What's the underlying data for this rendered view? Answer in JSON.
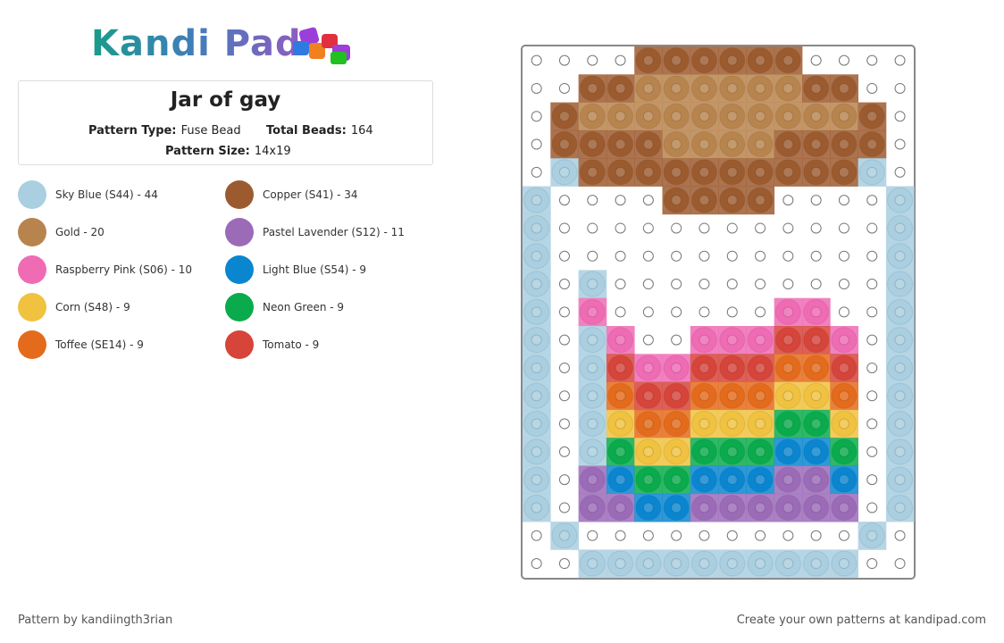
{
  "header": {
    "logo": "Kandi Pad"
  },
  "info": {
    "title": "Jar of gay",
    "pattern_type_label": "Pattern Type:",
    "pattern_type": "Fuse Bead",
    "total_beads_label": "Total Beads:",
    "total_beads": "164",
    "pattern_size_label": "Pattern Size:",
    "pattern_size": "14x19"
  },
  "legend": [
    {
      "label": "Sky Blue (S44) - 44",
      "color": "#a9cfe0"
    },
    {
      "label": "Copper (S41) - 34",
      "color": "#9c5b2f"
    },
    {
      "label": "Gold - 20",
      "color": "#b8844d"
    },
    {
      "label": "Pastel Lavender (S12) - 11",
      "color": "#9b6bb8"
    },
    {
      "label": "Raspberry Pink (S06) - 10",
      "color": "#ef6bb4"
    },
    {
      "label": "Light Blue (S54) - 9",
      "color": "#0a86d0"
    },
    {
      "label": "Corn (S48) - 9",
      "color": "#f0c23f"
    },
    {
      "label": "Neon Green - 9",
      "color": "#0aab4c"
    },
    {
      "label": "Toffee (SE14) - 9",
      "color": "#e46b1b"
    },
    {
      "label": "Tomato - 9",
      "color": "#d6443a"
    }
  ],
  "grid": [
    [
      null,
      null,
      null,
      null,
      1,
      1,
      1,
      1,
      1,
      1,
      null,
      null,
      null,
      null
    ],
    [
      null,
      null,
      1,
      1,
      2,
      2,
      2,
      2,
      2,
      2,
      1,
      1,
      null,
      null
    ],
    [
      null,
      1,
      2,
      2,
      2,
      2,
      2,
      2,
      2,
      2,
      2,
      2,
      1,
      null
    ],
    [
      null,
      1,
      1,
      1,
      1,
      2,
      2,
      2,
      2,
      1,
      1,
      1,
      1,
      null
    ],
    [
      null,
      0,
      1,
      1,
      1,
      1,
      1,
      1,
      1,
      1,
      1,
      1,
      0,
      null
    ],
    [
      0,
      null,
      null,
      null,
      null,
      1,
      1,
      1,
      1,
      null,
      null,
      null,
      null,
      0
    ],
    [
      0,
      null,
      null,
      null,
      null,
      null,
      null,
      null,
      null,
      null,
      null,
      null,
      null,
      0
    ],
    [
      0,
      null,
      null,
      null,
      null,
      null,
      null,
      null,
      null,
      null,
      null,
      null,
      null,
      0
    ],
    [
      0,
      null,
      0,
      null,
      null,
      null,
      null,
      null,
      null,
      null,
      null,
      null,
      null,
      0
    ],
    [
      0,
      null,
      4,
      null,
      null,
      null,
      null,
      null,
      null,
      4,
      4,
      null,
      null,
      0
    ],
    [
      0,
      null,
      0,
      4,
      null,
      null,
      4,
      4,
      4,
      9,
      9,
      4,
      null,
      0
    ],
    [
      0,
      null,
      0,
      9,
      4,
      4,
      9,
      9,
      9,
      8,
      8,
      9,
      null,
      0
    ],
    [
      0,
      null,
      0,
      8,
      9,
      9,
      8,
      8,
      8,
      6,
      6,
      8,
      null,
      0
    ],
    [
      0,
      null,
      0,
      6,
      8,
      8,
      6,
      6,
      6,
      7,
      7,
      6,
      null,
      0
    ],
    [
      0,
      null,
      0,
      7,
      6,
      6,
      7,
      7,
      7,
      5,
      5,
      7,
      null,
      0
    ],
    [
      0,
      null,
      3,
      5,
      7,
      7,
      5,
      5,
      5,
      3,
      3,
      5,
      null,
      0
    ],
    [
      0,
      null,
      3,
      3,
      5,
      5,
      3,
      3,
      3,
      3,
      3,
      3,
      null,
      0
    ],
    [
      null,
      0,
      null,
      null,
      null,
      null,
      null,
      null,
      null,
      null,
      null,
      null,
      0,
      null
    ],
    [
      null,
      null,
      0,
      0,
      0,
      0,
      0,
      0,
      0,
      0,
      0,
      0,
      null,
      null
    ]
  ],
  "footer": {
    "credit": "Pattern by kandiingth3rian",
    "cta": "Create your own patterns at kandipad.com"
  }
}
